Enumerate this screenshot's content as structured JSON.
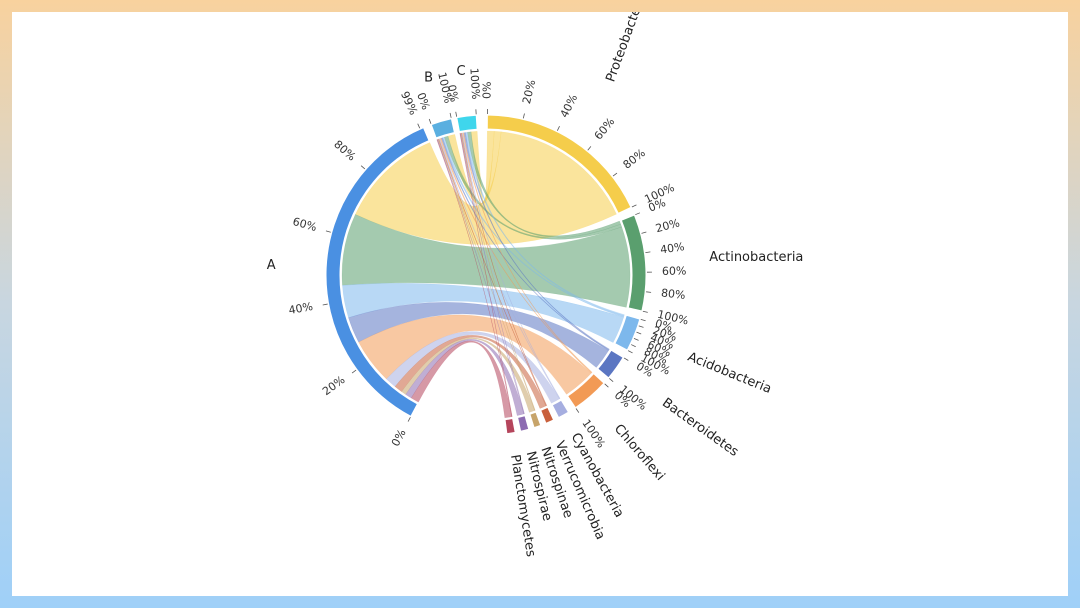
{
  "chart_data": {
    "type": "chord",
    "title": "",
    "source_groups": [
      {
        "name": "A",
        "color": "#4a90e2"
      },
      {
        "name": "B",
        "color": "#5aafe0"
      },
      {
        "name": "C",
        "color": "#3fd6ec"
      }
    ],
    "target_groups": [
      {
        "name": "Proteobacteria",
        "color": "#f5cd4b"
      },
      {
        "name": "Actinobacteria",
        "color": "#5a9f6e"
      },
      {
        "name": "Acidobacteria",
        "color": "#7db8ec"
      },
      {
        "name": "Bacteroidetes",
        "color": "#5b76c2"
      },
      {
        "name": "Chloroflexi",
        "color": "#f29a55"
      },
      {
        "name": "Cyanobacteria",
        "color": "#a6aee0"
      },
      {
        "name": "Verrucomicrobia",
        "color": "#c9603c"
      },
      {
        "name": "Nitrospinae",
        "color": "#c7a46a"
      },
      {
        "name": "Nitrospirae",
        "color": "#8c6bb1"
      },
      {
        "name": "Planctomycetes",
        "color": "#b5455c"
      }
    ],
    "links": [
      {
        "source": "A",
        "target": "Proteobacteria",
        "value": 32
      },
      {
        "source": "A",
        "target": "Actinobacteria",
        "value": 22
      },
      {
        "source": "A",
        "target": "Acidobacteria",
        "value": 10
      },
      {
        "source": "A",
        "target": "Bacteroidetes",
        "value": 8
      },
      {
        "source": "A",
        "target": "Chloroflexi",
        "value": 14
      },
      {
        "source": "A",
        "target": "Cyanobacteria",
        "value": 3.5
      },
      {
        "source": "A",
        "target": "Verrucomicrobia",
        "value": 2.5
      },
      {
        "source": "A",
        "target": "Nitrospinae",
        "value": 1.5
      },
      {
        "source": "A",
        "target": "Nitrospirae",
        "value": 2.0
      },
      {
        "source": "A",
        "target": "Planctomycetes",
        "value": 2.5
      },
      {
        "source": "B",
        "target": "Proteobacteria",
        "value": 1.5
      },
      {
        "source": "B",
        "target": "Actinobacteria",
        "value": 0.8
      },
      {
        "source": "B",
        "target": "Acidobacteria",
        "value": 0.4
      },
      {
        "source": "B",
        "target": "Bacteroidetes",
        "value": 0.3
      },
      {
        "source": "B",
        "target": "Chloroflexi",
        "value": 0.3
      },
      {
        "source": "B",
        "target": "Cyanobacteria",
        "value": 0.2
      },
      {
        "source": "B",
        "target": "Verrucomicrobia",
        "value": 0.2
      },
      {
        "source": "B",
        "target": "Nitrospinae",
        "value": 0.1
      },
      {
        "source": "B",
        "target": "Nitrospirae",
        "value": 0.1
      },
      {
        "source": "B",
        "target": "Planctomycetes",
        "value": 0.1
      },
      {
        "source": "C",
        "target": "Proteobacteria",
        "value": 1.5
      },
      {
        "source": "C",
        "target": "Actinobacteria",
        "value": 0.9
      },
      {
        "source": "C",
        "target": "Acidobacteria",
        "value": 0.5
      },
      {
        "source": "C",
        "target": "Bacteroidetes",
        "value": 0.4
      },
      {
        "source": "C",
        "target": "Chloroflexi",
        "value": 0.3
      },
      {
        "source": "C",
        "target": "Cyanobacteria",
        "value": 0.2
      },
      {
        "source": "C",
        "target": "Verrucomicrobia",
        "value": 0.2
      },
      {
        "source": "C",
        "target": "Nitrospinae",
        "value": 0.1
      },
      {
        "source": "C",
        "target": "Nitrospirae",
        "value": 0.1
      },
      {
        "source": "C",
        "target": "Planctomycetes",
        "value": 0.1
      }
    ],
    "tick_labels": {
      "A": [
        "0%",
        "20%",
        "40%",
        "60%",
        "80%",
        "99%"
      ],
      "B": [
        "0%",
        "100%"
      ],
      "C": [
        "0%",
        "100%"
      ],
      "Proteobacteria": [
        "0%",
        "20%",
        "40%",
        "60%",
        "80%",
        "100%"
      ],
      "Actinobacteria": [
        "0%",
        "20%",
        "40%",
        "60%",
        "80%",
        "100%"
      ],
      "Acidobacteria": [
        "0%",
        "20%",
        "40%",
        "60%",
        "80%",
        "100%"
      ],
      "Bacteroidetes": [
        "0%",
        "100%"
      ],
      "Chloroflexi": [
        "0%",
        "100%"
      ]
    }
  }
}
